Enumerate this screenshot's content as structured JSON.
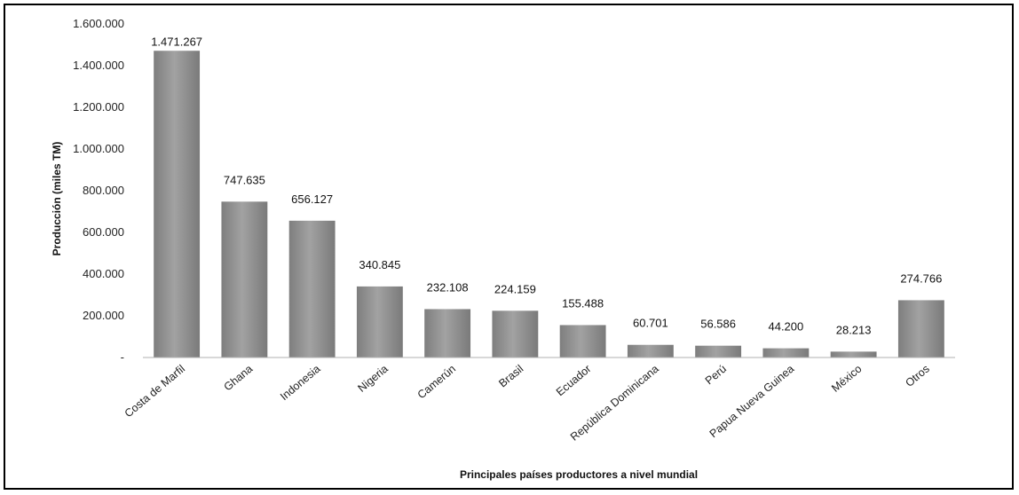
{
  "chart_data": {
    "type": "bar",
    "title": "",
    "xlabel": "Principales países productores a nivel mundial",
    "ylabel": "Producción (miles TM)",
    "ylim": [
      0,
      1600000
    ],
    "y_ticks": [
      "-",
      "200.000",
      "400.000",
      "600.000",
      "800.000",
      "1.000.000",
      "1.200.000",
      "1.400.000",
      "1.600.000"
    ],
    "grid": false,
    "categories": [
      "Costa de Marfil",
      "Ghana",
      "Indonesia",
      "Nigeria",
      "Camerún",
      "Brasil",
      "Ecuador",
      "República Dominicana",
      "Perú",
      "Papua Nueva Guinea",
      "México",
      "Otros"
    ],
    "values": [
      1471267,
      747635,
      656127,
      340845,
      232108,
      224159,
      155488,
      60701,
      56586,
      44200,
      28213,
      274766
    ],
    "value_labels": [
      "1.471.267",
      "747.635",
      "656.127",
      "340.845",
      "232.108",
      "224.159",
      "155.488",
      "60.701",
      "56.586",
      "44.200",
      "28.213",
      "274.766"
    ],
    "bar_color": "#8c8c8c"
  }
}
